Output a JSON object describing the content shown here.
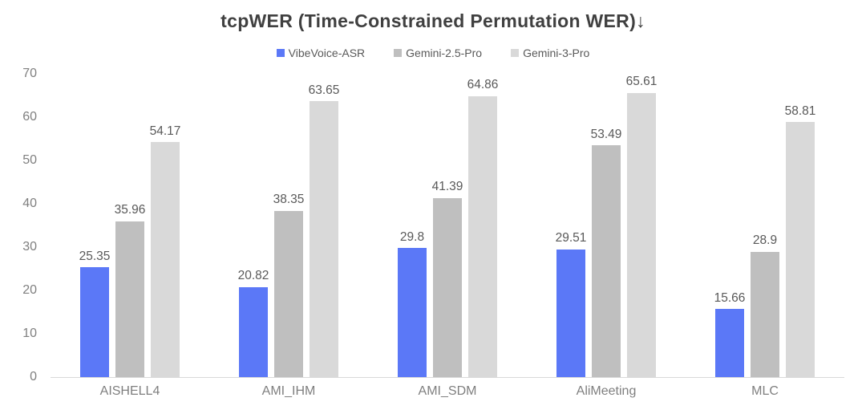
{
  "chart_data": {
    "type": "bar",
    "title": "tcpWER (Time-Constrained Permutation WER)↓",
    "categories": [
      "AISHELL4",
      "AMI_IHM",
      "AMI_SDM",
      "AliMeeting",
      "MLC"
    ],
    "series": [
      {
        "name": "VibeVoice-ASR",
        "color": "#5B78F7",
        "values": [
          25.35,
          20.82,
          29.8,
          29.51,
          15.66
        ]
      },
      {
        "name": "Gemini-2.5-Pro",
        "color": "#BFBFBF",
        "values": [
          35.96,
          38.35,
          41.39,
          53.49,
          28.9
        ]
      },
      {
        "name": "Gemini-3-Pro",
        "color": "#D9D9D9",
        "values": [
          54.17,
          63.65,
          64.86,
          65.61,
          58.81
        ]
      }
    ],
    "ylim": [
      0,
      70
    ],
    "y_ticks": [
      0,
      10,
      20,
      30,
      40,
      50,
      60,
      70
    ],
    "xlabel": "",
    "ylabel": "",
    "grid": false,
    "legend_position": "top",
    "data_labels_shown": true,
    "colors": {
      "title_text": "#404040",
      "legend_text": "#595959",
      "value_label_text": "#595959",
      "axis_tick_text": "#7f7f7f",
      "axis_line": "#d9d9d9",
      "background": "#ffffff"
    }
  }
}
